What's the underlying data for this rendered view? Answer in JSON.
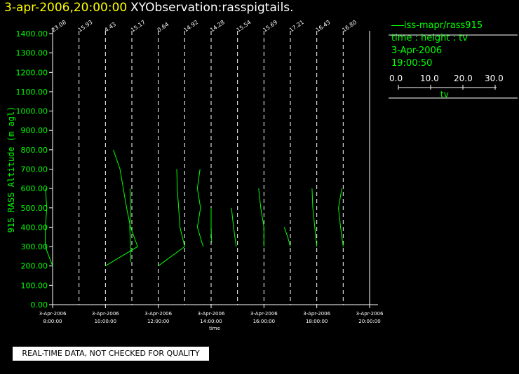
{
  "header": {
    "time_label": "3-apr-2006,20:00:00",
    "observation_label": "XYObservation:rasspigtails."
  },
  "legend": {
    "series": "iss-mapr/rass915",
    "axes": "time : height : tv",
    "date": "3-Apr-2006",
    "time": "19:00:50",
    "scale_ticks": [
      "0.0",
      "10.0",
      "20.0",
      "30.0"
    ],
    "scale_label": "tv"
  },
  "disclaimer": "REAL-TIME DATA, NOT CHECKED FOR QUALITY",
  "colors": {
    "trace": "#00ff00",
    "header_time": "#ffff00",
    "axis": "#ffffff"
  },
  "chart_data": {
    "type": "line",
    "ylabel": "915 RASS Altitude (m agl)",
    "xlabel": "time",
    "ylim": [
      0,
      1400
    ],
    "xlim": [
      8,
      20
    ],
    "y_ticks": [
      "0.00",
      "100.00",
      "200.00",
      "300.00",
      "400.00",
      "500.00",
      "600.00",
      "700.00",
      "800.00",
      "900.00",
      "1000.00",
      "1100.00",
      "1200.00",
      "1300.00",
      "1400.00"
    ],
    "x_ticks": [
      {
        "x": 8,
        "date": "3-Apr-2006",
        "time": "8:00:00"
      },
      {
        "x": 10,
        "date": "3-Apr-2006",
        "time": "10:00:00"
      },
      {
        "x": 12,
        "date": "3-Apr-2006",
        "time": "12:00:00"
      },
      {
        "x": 14,
        "date": "3-Apr-2006",
        "time": "14:00:00"
      },
      {
        "x": 16,
        "date": "3-Apr-2006",
        "time": "16:00:00"
      },
      {
        "x": 18,
        "date": "3-Apr-2006",
        "time": "18:00:00"
      },
      {
        "x": 20,
        "date": "3-Apr-2006",
        "time": "20:00:00"
      }
    ],
    "grid": "vertical dashed reference lines per sounding",
    "pigtails": [
      {
        "t": 8.0,
        "label": "23.08",
        "points": [
          [
            7.73,
            600
          ],
          [
            7.78,
            500
          ],
          [
            7.73,
            400
          ],
          [
            7.72,
            300
          ],
          [
            8.0,
            200
          ]
        ]
      },
      {
        "t": 9.0,
        "label": "15.93",
        "points": []
      },
      {
        "t": 10.0,
        "label": "4.43",
        "points": [
          [
            10.3,
            800
          ],
          [
            10.55,
            700
          ],
          [
            10.8,
            500
          ],
          [
            10.95,
            400
          ],
          [
            11.22,
            300
          ],
          [
            10.0,
            200
          ]
        ]
      },
      {
        "t": 11.0,
        "label": "15.17",
        "points": [
          [
            10.93,
            600
          ],
          [
            10.95,
            500
          ],
          [
            10.92,
            400
          ],
          [
            10.95,
            300
          ],
          [
            10.95,
            220
          ]
        ]
      },
      {
        "t": 12.0,
        "label": "0.64",
        "points": [
          [
            12.7,
            700
          ],
          [
            12.72,
            600
          ],
          [
            12.82,
            400
          ],
          [
            13.0,
            300
          ],
          [
            12.0,
            200
          ]
        ]
      },
      {
        "t": 13.0,
        "label": "14.92",
        "points": [
          [
            13.58,
            700
          ],
          [
            13.48,
            600
          ],
          [
            13.6,
            500
          ],
          [
            13.48,
            400
          ],
          [
            13.7,
            300
          ]
        ]
      },
      {
        "t": 14.0,
        "label": "14.28",
        "points": [
          [
            14.0,
            500
          ],
          [
            14.0,
            400
          ],
          [
            14.02,
            320
          ]
        ]
      },
      {
        "t": 15.0,
        "label": "15.54",
        "points": [
          [
            14.77,
            500
          ],
          [
            14.85,
            400
          ],
          [
            14.95,
            300
          ]
        ]
      },
      {
        "t": 16.0,
        "label": "15.69",
        "points": [
          [
            15.8,
            600
          ],
          [
            15.88,
            500
          ],
          [
            16.0,
            400
          ],
          [
            16.0,
            300
          ]
        ]
      },
      {
        "t": 17.0,
        "label": "17.21",
        "points": [
          [
            16.77,
            400
          ],
          [
            16.9,
            350
          ],
          [
            17.0,
            300
          ]
        ]
      },
      {
        "t": 18.0,
        "label": "16.43",
        "points": [
          [
            17.82,
            600
          ],
          [
            17.85,
            500
          ],
          [
            18.0,
            300
          ]
        ]
      },
      {
        "t": 19.0,
        "label": "16.80",
        "points": [
          [
            18.95,
            600
          ],
          [
            18.82,
            500
          ],
          [
            18.9,
            400
          ],
          [
            19.0,
            300
          ]
        ]
      },
      {
        "t": 20.0,
        "label": "",
        "points": []
      }
    ]
  }
}
